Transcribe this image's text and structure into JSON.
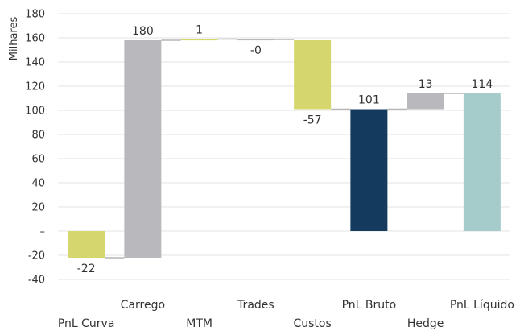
{
  "chart_data": {
    "type": "bar",
    "subtype": "waterfall",
    "ylabel": "Milhares",
    "ylim": [
      -40,
      180
    ],
    "ytick_step": 20,
    "ytick_labels": [
      "-40",
      "-20",
      "–",
      "20",
      "40",
      "60",
      "80",
      "100",
      "120",
      "140",
      "160",
      "180"
    ],
    "grid": true,
    "categories": [
      "PnL Curva",
      "Carrego",
      "MTM",
      "Trades",
      "Custos",
      "PnL Bruto",
      "Hedge",
      "PnL Líquido"
    ],
    "bars": [
      {
        "category": "PnL Curva",
        "start": 0,
        "end": -22,
        "label": "-22",
        "color": "#d6d66e"
      },
      {
        "category": "Carrego",
        "start": -22,
        "end": 158,
        "label": "180",
        "color": "#b9b9bd"
      },
      {
        "category": "MTM",
        "start": 158,
        "end": 159,
        "label": "1",
        "color": "#d6d66e"
      },
      {
        "category": "Trades",
        "start": 159,
        "end": 158.7,
        "label": "-0",
        "color": "#b9b9bd"
      },
      {
        "category": "Custos",
        "start": 158,
        "end": 101,
        "label": "-57",
        "color": "#d6d66e"
      },
      {
        "category": "PnL Bruto",
        "start": 0,
        "end": 101,
        "label": "101",
        "color": "#143b5e"
      },
      {
        "category": "Hedge",
        "start": 101,
        "end": 114,
        "label": "13",
        "color": "#b9b9bd"
      },
      {
        "category": "PnL Líquido",
        "start": 0,
        "end": 114,
        "label": "114",
        "color": "#a6cbcb"
      }
    ]
  }
}
